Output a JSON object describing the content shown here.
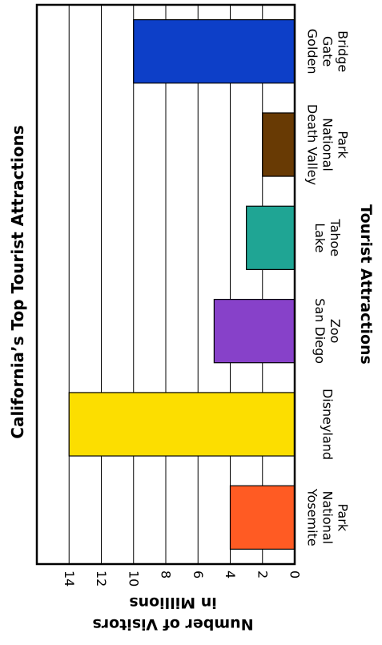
{
  "chart_data": {
    "type": "bar",
    "title": "California’s Top Tourist Attractions",
    "xlabel": "Tourist Attractions",
    "ylabel_lines": [
      "Number of Visitors",
      "in Millions"
    ],
    "categories": [
      [
        "Yosemite",
        "National",
        "Park"
      ],
      [
        "Disneyland"
      ],
      [
        "San Diego",
        "Zoo"
      ],
      [
        "Lake",
        "Tahoe"
      ],
      [
        "Death Valley",
        "National",
        "Park"
      ],
      [
        "Golden",
        "Gate",
        "Bridge"
      ]
    ],
    "values": [
      4,
      14,
      5,
      3,
      2,
      10
    ],
    "colors": [
      "#FF5B23",
      "#FCDE00",
      "#8741C9",
      "#1FA594",
      "#683A04",
      "#0D3FC8"
    ],
    "ylim": [
      0,
      16
    ],
    "yticks": [
      0,
      2,
      4,
      6,
      8,
      10,
      12,
      14
    ],
    "grid": true,
    "orientation": "rotated-90"
  }
}
